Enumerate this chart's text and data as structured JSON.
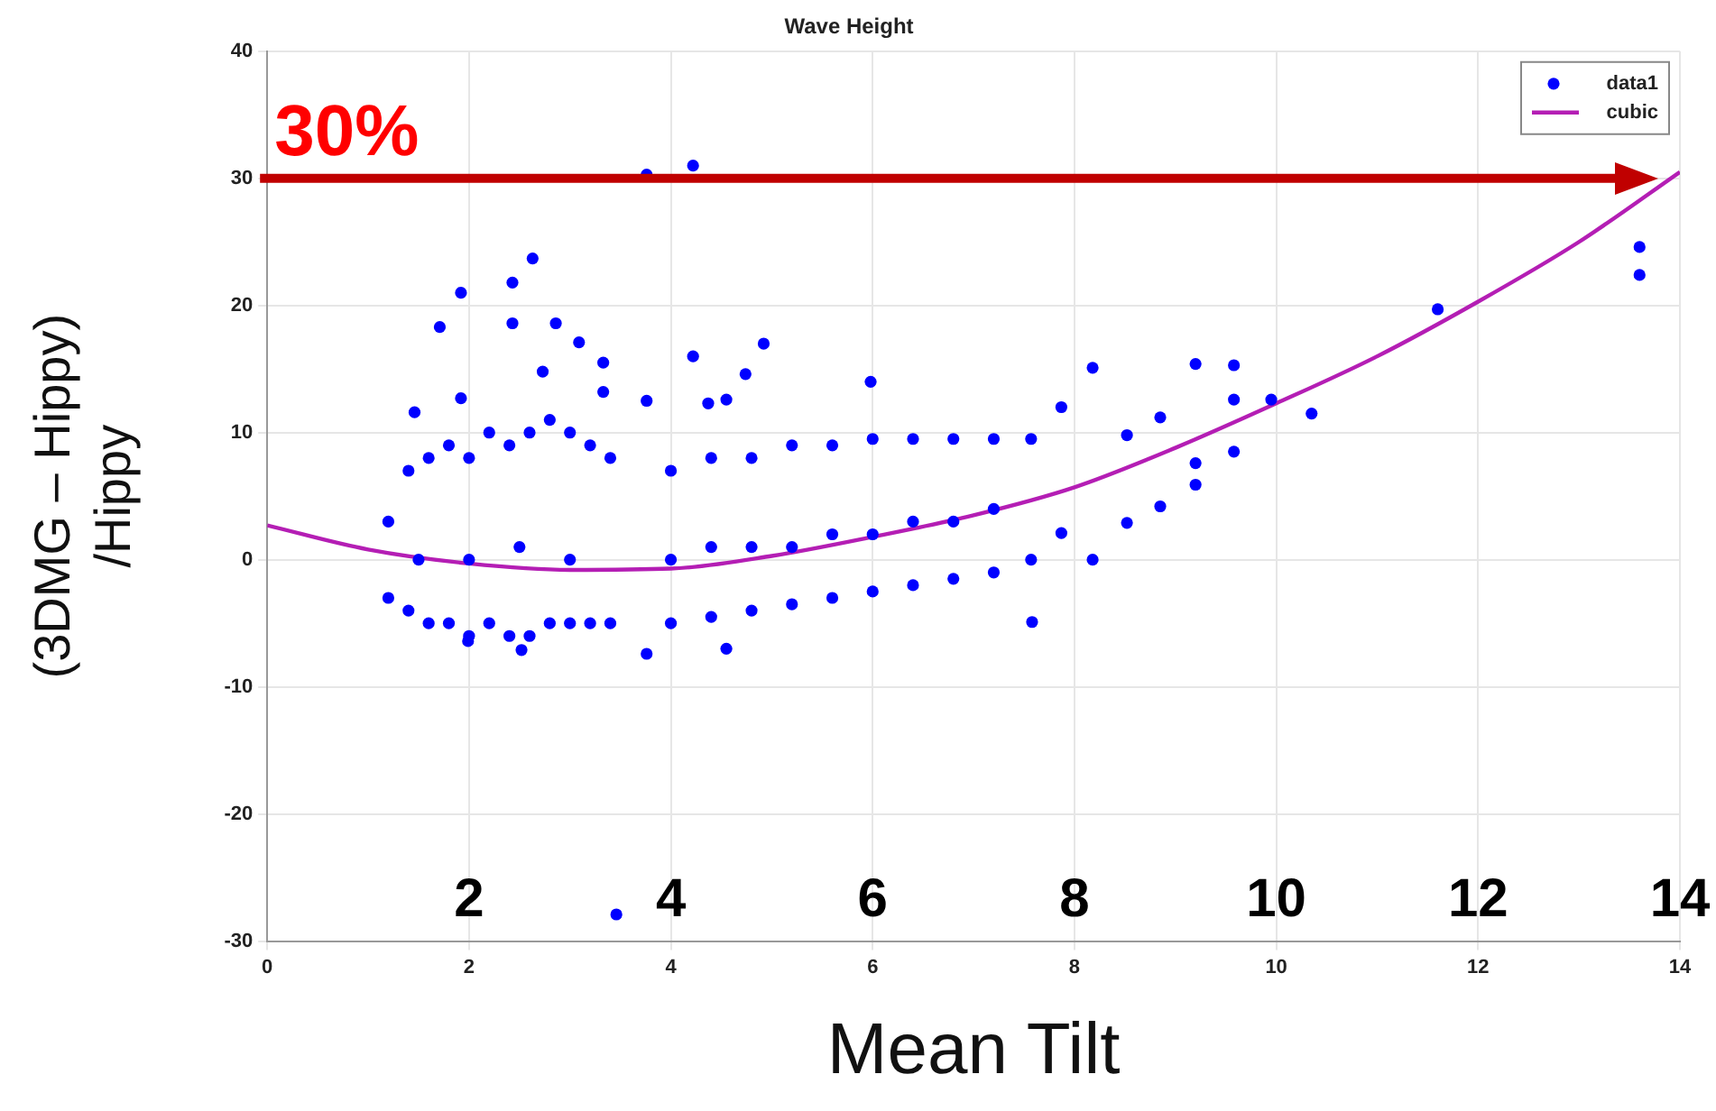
{
  "chart_data": {
    "type": "scatter",
    "title": "Wave Height",
    "xlabel": "Mean Tilt",
    "ylabel": "(3DMG – Hippy)\n/Hippy",
    "xlim": [
      0,
      14
    ],
    "xticks": [
      0,
      2,
      4,
      6,
      8,
      10,
      12,
      14
    ],
    "ylim": [
      -30,
      40
    ],
    "yticks": [
      -30,
      -20,
      -10,
      0,
      10,
      20,
      30,
      40
    ],
    "grid": true,
    "legend": "top right",
    "marker": "circle",
    "series": [
      {
        "name": "data1",
        "color": "#0000ff",
        "x": [
          3.76,
          4.22,
          1.71,
          1.92,
          2.43,
          2.63,
          2.43,
          2.86,
          3.09,
          4.92,
          4.22,
          3.33,
          2.73,
          5.98,
          1.92,
          3.33,
          3.76,
          4.37,
          4.55,
          4.74,
          1.46,
          1.99,
          2.52,
          3.76,
          4.55,
          7.58,
          3.46,
          13.6,
          13.6,
          11.6,
          10.35,
          9.95,
          9.58,
          9.2,
          9.58,
          9.58,
          9.2,
          9.2,
          8.85,
          8.85,
          8.52,
          8.52,
          8.18,
          8.18,
          7.87,
          7.87,
          7.57,
          7.57,
          1.2,
          1.2,
          1.4,
          1.4,
          1.6,
          1.6,
          1.8,
          1.8,
          2.0,
          2.0,
          2.2,
          2.2,
          2.4,
          2.4,
          2.6,
          2.6,
          2.8,
          2.8,
          3.0,
          3.0,
          3.2,
          3.2,
          3.4,
          3.4,
          1.5,
          2.0,
          2.5,
          3.0,
          4.0,
          4.0,
          4.0,
          4.4,
          4.4,
          4.4,
          4.8,
          4.8,
          4.8,
          5.2,
          5.2,
          5.2,
          5.6,
          5.6,
          5.6,
          6.0,
          6.0,
          6.0,
          6.4,
          6.4,
          6.4,
          6.8,
          6.8,
          6.8,
          7.2,
          7.2,
          7.2
        ],
        "values": [
          30.3,
          31.0,
          18.3,
          21.0,
          21.8,
          23.7,
          18.6,
          18.6,
          17.1,
          17.0,
          16.0,
          15.5,
          14.8,
          14.0,
          12.7,
          13.2,
          12.5,
          12.3,
          12.6,
          14.6,
          11.6,
          -6.4,
          -7.1,
          -7.4,
          -7.0,
          -4.9,
          -27.9,
          24.6,
          22.4,
          19.7,
          11.5,
          12.6,
          15.3,
          15.4,
          12.6,
          8.5,
          5.9,
          7.6,
          11.2,
          4.2,
          2.9,
          9.8,
          15.1,
          0.0,
          12.0,
          2.1,
          9.5,
          0.0,
          3,
          -3,
          7,
          -4,
          8,
          -5,
          9,
          -5,
          8,
          -6,
          10,
          -5,
          9,
          -6,
          10,
          -6,
          11,
          -5,
          10,
          -5,
          9,
          -5,
          8,
          -5,
          0,
          0,
          1,
          0,
          7,
          -5,
          0,
          8,
          -4.5,
          1,
          8,
          -4,
          1,
          9,
          -3.5,
          1,
          9,
          -3,
          2,
          9.5,
          -2.5,
          2,
          9.5,
          -2,
          3,
          9.5,
          -1.5,
          3,
          9.5,
          -1,
          4
        ]
      },
      {
        "name": "cubic",
        "type": "line",
        "color": "#b41eb4",
        "marker": "none",
        "x": [
          0,
          1,
          2,
          3,
          4,
          5,
          6,
          7,
          8,
          9,
          10,
          11,
          12,
          13,
          14
        ],
        "values": [
          2.7,
          0.8,
          -0.3,
          -0.8,
          -0.7,
          0.3,
          1.8,
          3.5,
          5.7,
          8.8,
          12.3,
          16,
          20.3,
          25,
          30.5
        ]
      }
    ],
    "ref_lines": [
      {
        "axis": "y",
        "value": 30,
        "label": "30%",
        "color": "#c00000"
      }
    ],
    "x2lim": [
      0,
      14
    ],
    "x2ticks": [
      2,
      4,
      6,
      8,
      10,
      12,
      14
    ]
  }
}
